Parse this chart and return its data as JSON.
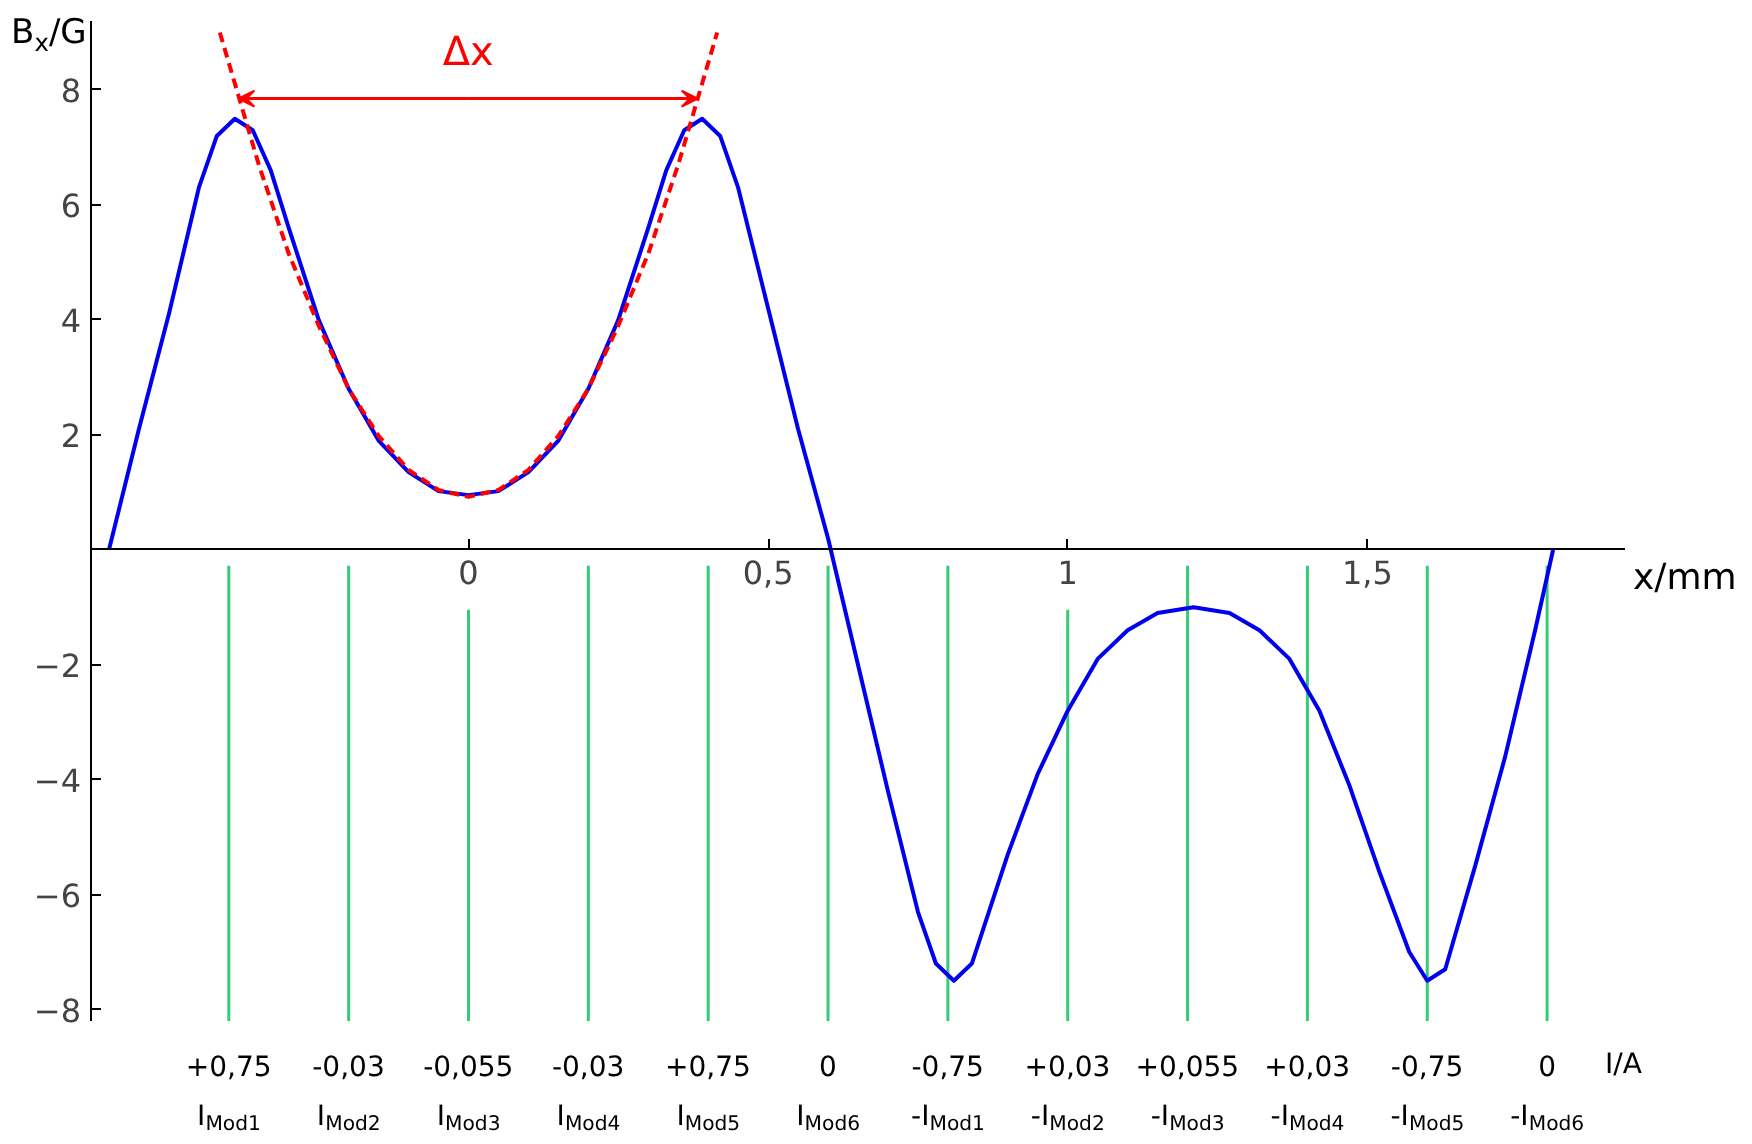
{
  "chart_data": {
    "type": "line",
    "xlabel": "x/mm",
    "ylabel": "B$_{x}$/G",
    "xlim": [
      -0.63,
      1.93
    ],
    "ylim": [
      -8.2,
      9.2
    ],
    "xticks": [
      0,
      {
        "value": 0.5,
        "label": "0,5"
      },
      1,
      {
        "value": 1.5,
        "label": "1,5"
      }
    ],
    "yticks": [
      -8,
      -6,
      -4,
      -2,
      2,
      4,
      6,
      8
    ],
    "series": [
      {
        "type": "line",
        "color": "#0000ee",
        "x": [
          -0.6,
          -0.55,
          -0.5,
          -0.45,
          -0.42,
          -0.39,
          -0.36,
          -0.33,
          -0.3,
          -0.25,
          -0.2,
          -0.15,
          -0.1,
          -0.05,
          0,
          0.05,
          0.1,
          0.15,
          0.2,
          0.25,
          0.3,
          0.33,
          0.36,
          0.39,
          0.42,
          0.45,
          0.5,
          0.55,
          0.6,
          0.65,
          0.7,
          0.75,
          0.78,
          0.81,
          0.84,
          0.9,
          0.95,
          1.0,
          1.05,
          1.1,
          1.15,
          1.21,
          1.27,
          1.32,
          1.37,
          1.42,
          1.47,
          1.52,
          1.57,
          1.6,
          1.63,
          1.68,
          1.73,
          1.78,
          1.81
        ],
        "values": [
          0,
          2.1,
          4.1,
          6.3,
          7.2,
          7.5,
          7.3,
          6.6,
          5.6,
          4.0,
          2.8,
          1.9,
          1.35,
          1.02,
          0.95,
          1.02,
          1.35,
          1.9,
          2.8,
          4.0,
          5.6,
          6.6,
          7.3,
          7.5,
          7.2,
          6.3,
          4.2,
          2.1,
          0.2,
          -2.0,
          -4.2,
          -6.3,
          -7.2,
          -7.5,
          -7.2,
          -5.3,
          -3.9,
          -2.8,
          -1.9,
          -1.4,
          -1.1,
          -1.0,
          -1.1,
          -1.4,
          -1.9,
          -2.8,
          -4.1,
          -5.6,
          -7.0,
          -7.5,
          -7.3,
          -5.5,
          -3.6,
          -1.4,
          0
        ]
      },
      {
        "type": "line",
        "color": "#ff0000",
        "line_style": "dashed",
        "x": [
          -0.415,
          -0.35,
          -0.3,
          -0.25,
          -0.2,
          -0.15,
          -0.1,
          -0.05,
          0,
          0.05,
          0.1,
          0.15,
          0.2,
          0.25,
          0.3,
          0.35,
          0.415
        ],
        "values": [
          9.0,
          6.7,
          5.15,
          3.9,
          2.8,
          1.98,
          1.39,
          1.04,
          0.92,
          1.04,
          1.39,
          1.98,
          2.8,
          3.9,
          5.15,
          6.7,
          9.0
        ]
      }
    ],
    "ref_lines": [
      {
        "axis": "x",
        "value": -0.4,
        "label": "+0,75\nI$_{Mod1}$",
        "color": "#33cc77"
      },
      {
        "axis": "x",
        "value": -0.2,
        "label": "-0,03\nI$_{Mod2}$",
        "color": "#33cc77"
      },
      {
        "axis": "x",
        "value": 0,
        "label": "-0,055\nI$_{Mod3}$",
        "color": "#33cc77"
      },
      {
        "axis": "x",
        "value": 0.2,
        "label": "-0,03\nI$_{Mod4}$",
        "color": "#33cc77"
      },
      {
        "axis": "x",
        "value": 0.4,
        "label": "+0,75\nI$_{Mod5}$",
        "color": "#33cc77"
      },
      {
        "axis": "x",
        "value": 0.6,
        "label": "0\nI$_{Mod6}$",
        "color": "#33cc77"
      },
      {
        "axis": "x",
        "value": 0.8,
        "label": "-0,75\n-I$_{Mod1}$",
        "color": "#33cc77"
      },
      {
        "axis": "x",
        "value": 1.0,
        "label": "+0,03\n-I$_{Mod2}$",
        "color": "#33cc77"
      },
      {
        "axis": "x",
        "value": 1.2,
        "label": "+0,055\n-I$_{Mod3}$",
        "color": "#33cc77"
      },
      {
        "axis": "x",
        "value": 1.4,
        "label": "+0,03\n-I$_{Mod4}$",
        "color": "#33cc77"
      },
      {
        "axis": "x",
        "value": 1.6,
        "label": "-0,75\n-I$_{Mod5}$",
        "color": "#33cc77"
      },
      {
        "axis": "x",
        "value": 1.8,
        "label": "0\n-I$_{Mod6}$",
        "color": "#33cc77"
      }
    ],
    "annotations": [
      "I/A",
      {
        "text": "Δx",
        "x": -0.384,
        "y": 7.85
      }
    ]
  }
}
